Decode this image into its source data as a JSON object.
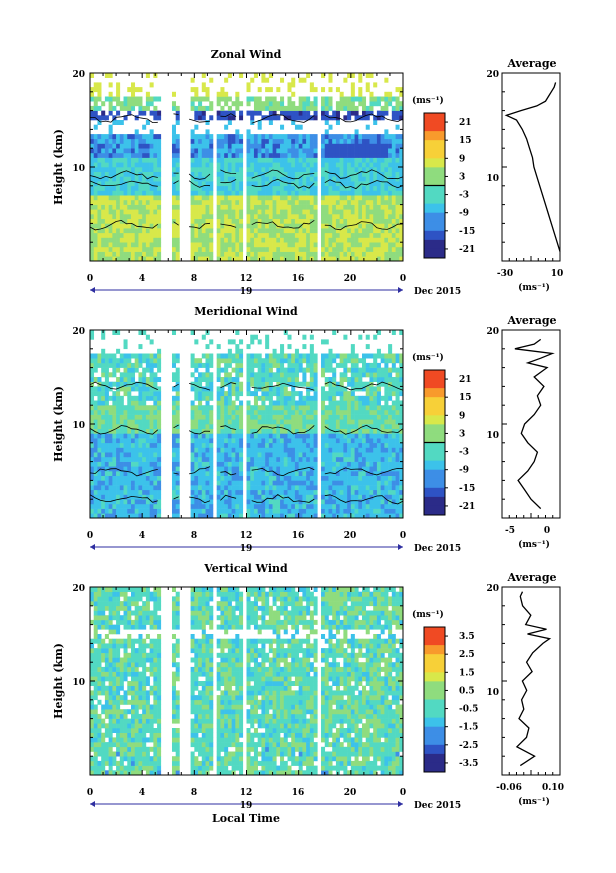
{
  "figure": {
    "xlabel": "Local Time",
    "date_label": "Dec 2015",
    "date_tick": "19",
    "xticks": [
      "0",
      "4",
      "8",
      "12",
      "16",
      "20",
      "0"
    ],
    "ylabel": "Height (km)",
    "yticks": [
      "10",
      "20"
    ]
  },
  "colors": {
    "scale": [
      "#2b2b88",
      "#2e53c4",
      "#3d8ee6",
      "#3cc2ea",
      "#52d9c2",
      "#8fdc7e",
      "#d8e84a",
      "#f7d038",
      "#f89a2c",
      "#f04a23"
    ]
  },
  "chart_data": [
    {
      "type": "heatmap",
      "title": "Zonal Wind",
      "x_range": [
        0,
        24
      ],
      "y_range": [
        0,
        20
      ],
      "gaps_hours": [
        [
          5.5,
          6.2
        ],
        [
          6.9,
          7.6
        ],
        [
          9.3,
          9.8
        ],
        [
          11.6,
          12.1
        ],
        [
          17.4,
          17.8
        ]
      ],
      "colorbar": {
        "unit": "(ms⁻¹)",
        "range": [
          -24,
          24
        ],
        "ticks": [
          "21",
          "15",
          "9",
          "3",
          "-3",
          "-9",
          "-15",
          "-21"
        ],
        "zero_line": true
      },
      "profile": {
        "title": "Average",
        "xticks": [
          "-30",
          "10"
        ],
        "xlabel": "(ms⁻¹)",
        "yticks": [
          "10",
          "20"
        ],
        "x_range": [
          -30,
          10
        ],
        "heights": [
          1,
          2,
          3,
          4,
          5,
          6,
          7,
          8,
          9,
          10,
          11,
          12,
          13,
          14,
          15,
          15.5,
          16,
          16.5,
          17,
          17.5,
          18,
          18.5,
          19
        ],
        "values": [
          10,
          8,
          6,
          4,
          2,
          0,
          -2,
          -4,
          -6,
          -8,
          -9,
          -11,
          -13,
          -16,
          -20,
          -27,
          -17,
          -6,
          0,
          2,
          4,
          6,
          7
        ]
      }
    },
    {
      "type": "heatmap",
      "title": "Meridional Wind",
      "x_range": [
        0,
        24
      ],
      "y_range": [
        0,
        20
      ],
      "gaps_hours": [
        [
          5.5,
          6.2
        ],
        [
          6.9,
          7.6
        ],
        [
          9.3,
          9.8
        ],
        [
          11.6,
          12.1
        ],
        [
          17.4,
          17.8
        ]
      ],
      "colorbar": {
        "unit": "(ms⁻¹)",
        "range": [
          -24,
          24
        ],
        "ticks": [
          "21",
          "15",
          "9",
          "3",
          "-3",
          "-9",
          "-15",
          "-21"
        ],
        "zero_line": true
      },
      "profile": {
        "title": "Average",
        "xticks": [
          "-5",
          "0"
        ],
        "xlabel": "(ms⁻¹)",
        "yticks": [
          "10",
          "20"
        ],
        "x_range": [
          -7,
          2
        ],
        "heights": [
          1,
          2,
          3,
          4,
          5,
          6,
          7,
          8,
          9,
          10,
          11,
          12,
          13,
          14,
          15,
          16,
          16.5,
          17,
          17.5,
          18,
          18.5,
          19
        ],
        "values": [
          -1,
          -2.5,
          -3.5,
          -4.5,
          -3,
          -2,
          -1.5,
          -3,
          -4,
          -3.5,
          -2,
          -1,
          -1.5,
          -0.5,
          -2,
          0,
          -3,
          -1,
          0.8,
          -5,
          -2,
          -1
        ]
      }
    },
    {
      "type": "heatmap",
      "title": "Vertical Wind",
      "x_range": [
        0,
        24
      ],
      "y_range": [
        0,
        20
      ],
      "gaps_hours": [
        [
          5.5,
          6.2
        ],
        [
          6.9,
          7.6
        ],
        [
          9.3,
          9.8
        ],
        [
          11.6,
          12.1
        ],
        [
          17.4,
          17.8
        ]
      ],
      "colorbar": {
        "unit": "(ms⁻¹)",
        "range": [
          -4,
          4
        ],
        "ticks": [
          "3.5",
          "2.5",
          "1.5",
          "0.5",
          "-0.5",
          "-1.5",
          "-2.5",
          "-3.5"
        ],
        "zero_line": false
      },
      "profile": {
        "title": "Average",
        "xticks": [
          "-0.06",
          "0.10"
        ],
        "xlabel": "(ms⁻¹)",
        "yticks": [
          "10",
          "20"
        ],
        "x_range": [
          -0.1,
          0.14
        ],
        "heights": [
          1,
          2,
          3,
          4,
          5,
          6,
          7,
          8,
          9,
          10,
          11,
          12,
          13,
          14,
          14.5,
          15,
          15.5,
          16,
          17,
          18,
          19,
          19.5
        ],
        "values": [
          -0.02,
          0.03,
          -0.04,
          0.0,
          0.01,
          -0.03,
          -0.01,
          -0.02,
          0.0,
          -0.01,
          0.02,
          0.0,
          0.03,
          0.07,
          0.1,
          0.01,
          0.09,
          0.0,
          0.02,
          -0.01,
          -0.03,
          -0.02
        ]
      }
    }
  ]
}
